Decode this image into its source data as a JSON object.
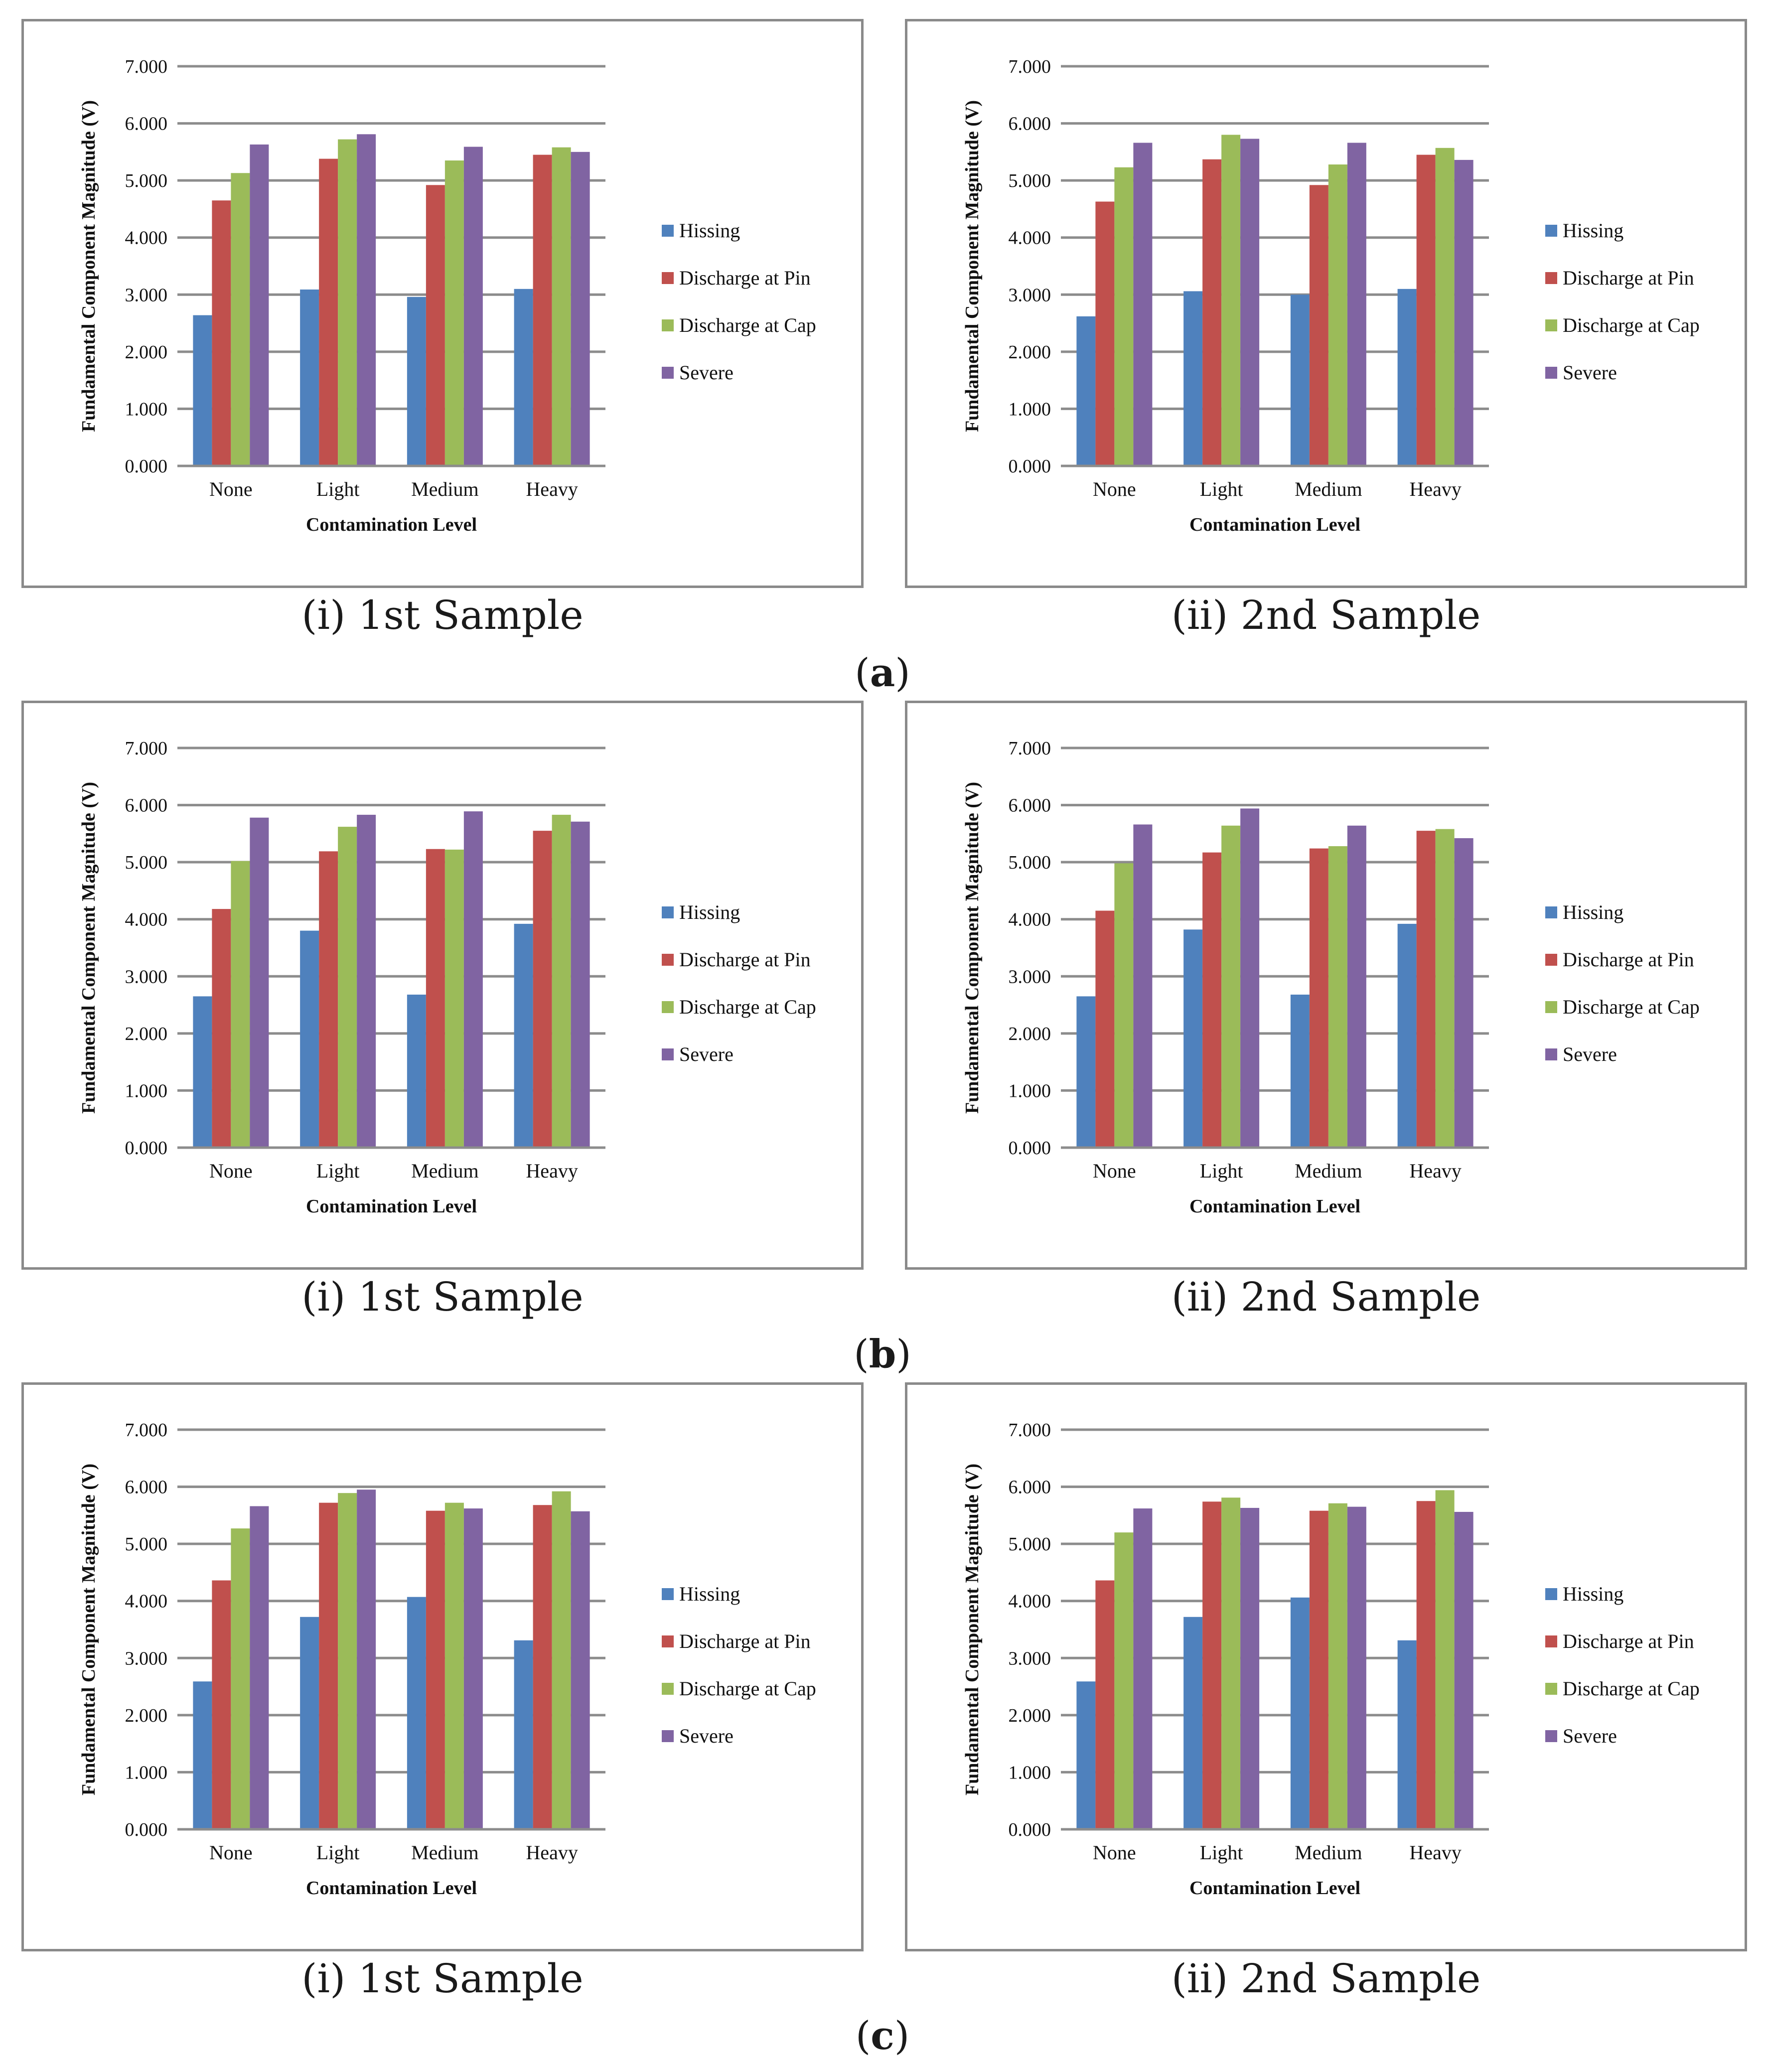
{
  "panel_labels": [
    {
      "letter": "a",
      "open": "(",
      "close": ")"
    },
    {
      "letter": "b",
      "open": "(",
      "close": ")"
    },
    {
      "letter": "c",
      "open": "(",
      "close": ")"
    }
  ],
  "captions": [
    "(i) 1st Sample",
    "(ii) 2nd Sample"
  ],
  "colors": {
    "Hissing": "#4f81bd",
    "Discharge at Pin": "#c0504d",
    "Discharge at Cap": "#9bbb59",
    "Severe": "#8064a2",
    "grid": "#8c8c8c",
    "frame": "#8a8a8a"
  },
  "chart_data": [
    {
      "panel": "a",
      "caption": "(i) 1st Sample",
      "type": "bar",
      "categories": [
        "None",
        "Light",
        "Medium",
        "Heavy"
      ],
      "series": [
        {
          "name": "Hissing",
          "values": [
            2.64,
            3.09,
            2.96,
            3.1
          ]
        },
        {
          "name": "Discharge at Pin",
          "values": [
            4.65,
            5.38,
            4.92,
            5.45
          ]
        },
        {
          "name": "Discharge at Cap",
          "values": [
            5.13,
            5.72,
            5.35,
            5.58
          ]
        },
        {
          "name": "Severe",
          "values": [
            5.63,
            5.81,
            5.59,
            5.5
          ]
        }
      ],
      "xlabel": "Contamination Level",
      "ylabel": "Fundamental Component Magnitude (V)",
      "ylim": [
        0,
        7
      ],
      "yticks": [
        "0.000",
        "1.000",
        "2.000",
        "3.000",
        "4.000",
        "5.000",
        "6.000",
        "7.000"
      ],
      "grid": true,
      "legend": "right"
    },
    {
      "panel": "a",
      "caption": "(ii) 2nd Sample",
      "type": "bar",
      "categories": [
        "None",
        "Light",
        "Medium",
        "Heavy"
      ],
      "series": [
        {
          "name": "Hissing",
          "values": [
            2.62,
            3.06,
            3.0,
            3.1
          ]
        },
        {
          "name": "Discharge at Pin",
          "values": [
            4.63,
            5.37,
            4.92,
            5.45
          ]
        },
        {
          "name": "Discharge at Cap",
          "values": [
            5.23,
            5.8,
            5.28,
            5.57
          ]
        },
        {
          "name": "Severe",
          "values": [
            5.66,
            5.73,
            5.66,
            5.36
          ]
        }
      ],
      "xlabel": "Contamination Level",
      "ylabel": "Fundamental Component Magnitude (V)",
      "ylim": [
        0,
        7
      ],
      "yticks": [
        "0.000",
        "1.000",
        "2.000",
        "3.000",
        "4.000",
        "5.000",
        "6.000",
        "7.000"
      ],
      "grid": true,
      "legend": "right"
    },
    {
      "panel": "b",
      "caption": "(i) 1st Sample",
      "type": "bar",
      "categories": [
        "None",
        "Light",
        "Medium",
        "Heavy"
      ],
      "series": [
        {
          "name": "Hissing",
          "values": [
            2.65,
            3.8,
            2.68,
            3.92
          ]
        },
        {
          "name": "Discharge at Pin",
          "values": [
            4.18,
            5.19,
            5.23,
            5.55
          ]
        },
        {
          "name": "Discharge at Cap",
          "values": [
            5.02,
            5.62,
            5.22,
            5.83
          ]
        },
        {
          "name": "Severe",
          "values": [
            5.78,
            5.83,
            5.89,
            5.71
          ]
        }
      ],
      "xlabel": "Contamination Level",
      "ylabel": "Fundamental Component Magnitude (V)",
      "ylim": [
        0,
        7
      ],
      "yticks": [
        "0.000",
        "1.000",
        "2.000",
        "3.000",
        "4.000",
        "5.000",
        "6.000",
        "7.000"
      ],
      "grid": true,
      "legend": "right"
    },
    {
      "panel": "b",
      "caption": "(ii) 2nd Sample",
      "type": "bar",
      "categories": [
        "None",
        "Light",
        "Medium",
        "Heavy"
      ],
      "series": [
        {
          "name": "Hissing",
          "values": [
            2.65,
            3.82,
            2.68,
            3.92
          ]
        },
        {
          "name": "Discharge at Pin",
          "values": [
            4.15,
            5.17,
            5.24,
            5.55
          ]
        },
        {
          "name": "Discharge at Cap",
          "values": [
            4.98,
            5.64,
            5.28,
            5.58
          ]
        },
        {
          "name": "Severe",
          "values": [
            5.66,
            5.94,
            5.64,
            5.42
          ]
        }
      ],
      "xlabel": "Contamination Level",
      "ylabel": "Fundamental Component Magnitude (V)",
      "ylim": [
        0,
        7
      ],
      "yticks": [
        "0.000",
        "1.000",
        "2.000",
        "3.000",
        "4.000",
        "5.000",
        "6.000",
        "7.000"
      ],
      "grid": true,
      "legend": "right"
    },
    {
      "panel": "c",
      "caption": "(i) 1st Sample",
      "type": "bar",
      "categories": [
        "None",
        "Light",
        "Medium",
        "Heavy"
      ],
      "series": [
        {
          "name": "Hissing",
          "values": [
            2.59,
            3.72,
            4.07,
            3.31
          ]
        },
        {
          "name": "Discharge at Pin",
          "values": [
            4.36,
            5.72,
            5.58,
            5.68
          ]
        },
        {
          "name": "Discharge at Cap",
          "values": [
            5.27,
            5.89,
            5.72,
            5.92
          ]
        },
        {
          "name": "Severe",
          "values": [
            5.66,
            5.95,
            5.62,
            5.57
          ]
        }
      ],
      "xlabel": "Contamination Level",
      "ylabel": "Fundamental Component Magnitude (V)",
      "ylim": [
        0,
        7
      ],
      "yticks": [
        "0.000",
        "1.000",
        "2.000",
        "3.000",
        "4.000",
        "5.000",
        "6.000",
        "7.000"
      ],
      "grid": true,
      "legend": "right"
    },
    {
      "panel": "c",
      "caption": "(ii) 2nd Sample",
      "type": "bar",
      "categories": [
        "None",
        "Light",
        "Medium",
        "Heavy"
      ],
      "series": [
        {
          "name": "Hissing",
          "values": [
            2.59,
            3.72,
            4.06,
            3.31
          ]
        },
        {
          "name": "Discharge at Pin",
          "values": [
            4.36,
            5.74,
            5.58,
            5.75
          ]
        },
        {
          "name": "Discharge at Cap",
          "values": [
            5.2,
            5.81,
            5.71,
            5.94
          ]
        },
        {
          "name": "Severe",
          "values": [
            5.62,
            5.63,
            5.65,
            5.56
          ]
        }
      ],
      "xlabel": "Contamination Level",
      "ylabel": "Fundamental Component Magnitude (V)",
      "ylim": [
        0,
        7
      ],
      "yticks": [
        "0.000",
        "1.000",
        "2.000",
        "3.000",
        "4.000",
        "5.000",
        "6.000",
        "7.000"
      ],
      "grid": true,
      "legend": "right"
    }
  ]
}
